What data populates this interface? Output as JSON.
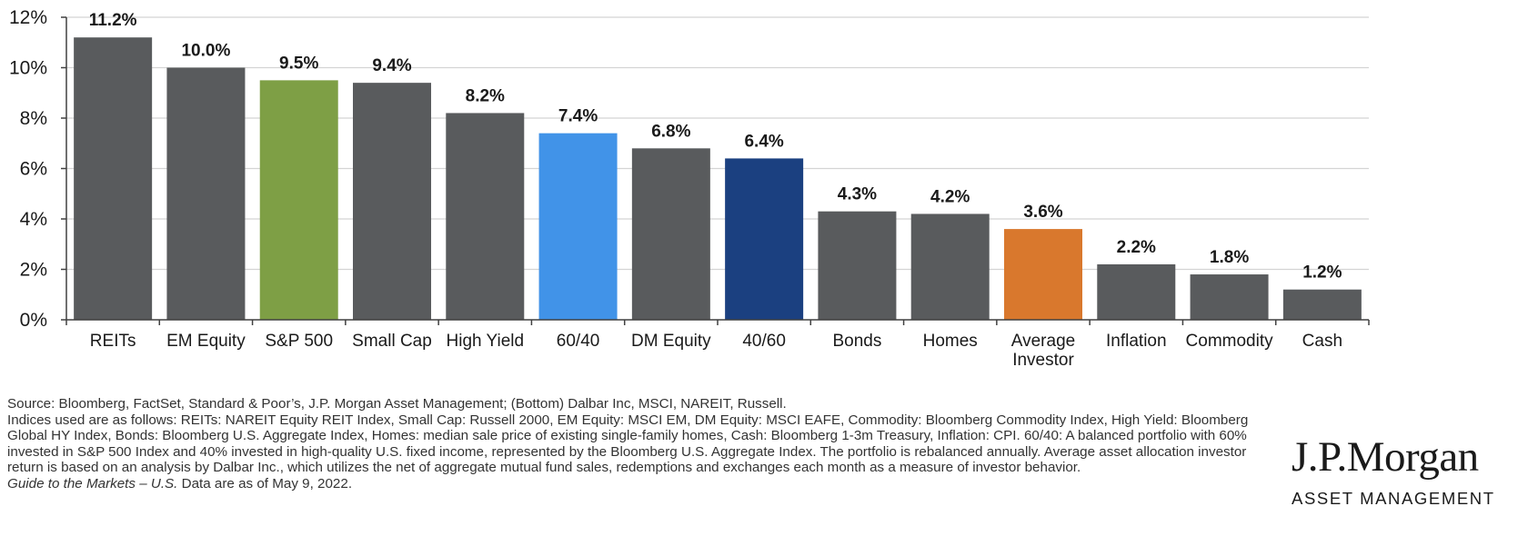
{
  "chart_data": {
    "type": "bar",
    "categories": [
      "REITs",
      "EM Equity",
      "S&P 500",
      "Small Cap",
      "High Yield",
      "60/40",
      "DM Equity",
      "40/60",
      "Bonds",
      "Homes",
      "Average Investor",
      "Inflation",
      "Commodity",
      "Cash"
    ],
    "category_lines": [
      [
        "REITs"
      ],
      [
        "EM Equity"
      ],
      [
        "S&P 500"
      ],
      [
        "Small Cap"
      ],
      [
        "High Yield"
      ],
      [
        "60/40"
      ],
      [
        "DM Equity"
      ],
      [
        "40/60"
      ],
      [
        "Bonds"
      ],
      [
        "Homes"
      ],
      [
        "Average",
        "Investor"
      ],
      [
        "Inflation"
      ],
      [
        "Commodity"
      ],
      [
        "Cash"
      ]
    ],
    "values": [
      11.2,
      10.0,
      9.5,
      9.4,
      8.2,
      7.4,
      6.8,
      6.4,
      4.3,
      4.2,
      3.6,
      2.2,
      1.8,
      1.2
    ],
    "value_labels": [
      "11.2%",
      "10.0%",
      "9.5%",
      "9.4%",
      "8.2%",
      "7.4%",
      "6.8%",
      "6.4%",
      "4.3%",
      "4.2%",
      "3.6%",
      "2.2%",
      "1.8%",
      "1.2%"
    ],
    "bar_colors": [
      "#595b5d",
      "#595b5d",
      "#7e9f45",
      "#595b5d",
      "#595b5d",
      "#4193e8",
      "#595b5d",
      "#1b4080",
      "#595b5d",
      "#595b5d",
      "#d9782d",
      "#595b5d",
      "#595b5d",
      "#595b5d"
    ],
    "ylim": [
      0,
      12
    ],
    "yticks": [
      0,
      2,
      4,
      6,
      8,
      10,
      12
    ],
    "ytick_labels": [
      "0%",
      "2%",
      "4%",
      "6%",
      "8%",
      "10%",
      "12%"
    ],
    "grid": true,
    "title": "",
    "xlabel": "",
    "ylabel": ""
  },
  "footnote": {
    "line1": "Source: Bloomberg, FactSet, Standard & Poor’s, J.P. Morgan Asset Management; (Bottom) Dalbar Inc, MSCI, NAREIT, Russell.",
    "line2": "Indices used are as follows: REITs: NAREIT Equity REIT Index, Small Cap: Russell 2000, EM Equity: MSCI EM, DM Equity: MSCI EAFE, Commodity: Bloomberg Commodity Index, High Yield: Bloomberg Global HY Index, Bonds: Bloomberg U.S. Aggregate Index, Homes: median sale price of existing single-family homes, Cash: Bloomberg 1-3m Treasury, Inflation: CPI. 60/40: A balanced portfolio with 60% invested in S&P 500 Index and 40% invested in high-quality U.S. fixed income, represented by the Bloomberg U.S. Aggregate Index. The portfolio is rebalanced annually. Average asset allocation investor return is based on an analysis by Dalbar Inc., which utilizes the net of aggregate mutual fund sales, redemptions and exchanges each month as a measure of investor behavior.",
    "guide_title": "Guide to the Markets – U.S.",
    "date_note": " Data are as of May 9, 2022."
  },
  "logo": {
    "name": "J.P.Morgan",
    "subtitle": "ASSET MANAGEMENT"
  }
}
